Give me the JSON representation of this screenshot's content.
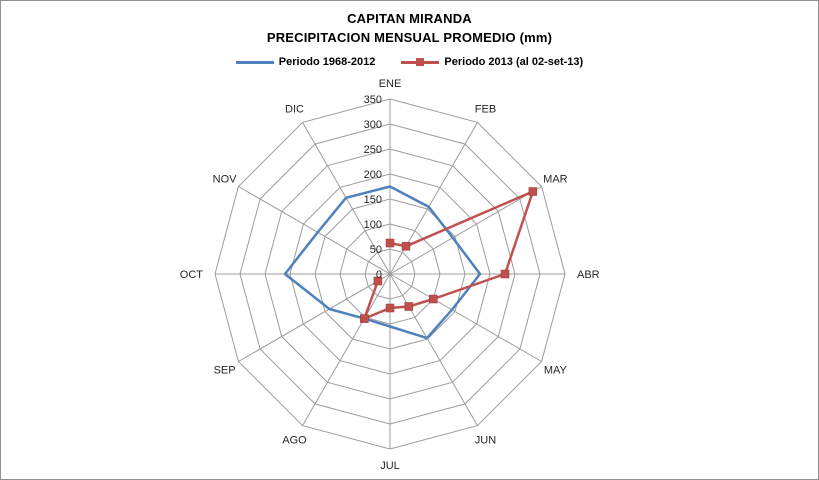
{
  "title": {
    "line1": "CAPITAN MIRANDA",
    "line2": "PRECIPITACION MENSUAL PROMEDIO (mm)"
  },
  "legend": [
    {
      "label": "Periodo 1968-2012",
      "color": "#4F81BD",
      "marker": "line"
    },
    {
      "label": "Periodo 2013 (al 02-set-13)",
      "color": "#C0504D",
      "marker": "line-square"
    }
  ],
  "chart_data": {
    "type": "radar",
    "title": "CAPITAN MIRANDA — PRECIPITACION MENSUAL PROMEDIO (mm)",
    "categories": [
      "ENE",
      "FEB",
      "MAR",
      "ABR",
      "MAY",
      "JUN",
      "JUL",
      "AGO",
      "SEP",
      "OCT",
      "NOV",
      "DIC"
    ],
    "axis": {
      "min": 0,
      "max": 350,
      "step": 50
    },
    "ticks": [
      0,
      50,
      100,
      150,
      200,
      250,
      300,
      350
    ],
    "grid": {
      "rings": 7,
      "color": "#9C9C9C"
    },
    "legend_position": "top",
    "series": [
      {
        "name": "Periodo 1968-2012",
        "color": "#4F81BD",
        "marker": "none",
        "closed": true,
        "values": [
          175,
          155,
          145,
          180,
          143,
          148,
          105,
          103,
          140,
          210,
          167,
          176
        ]
      },
      {
        "name": "Periodo 2013 (al 02-set-13)",
        "color": "#C0504D",
        "marker": "square",
        "closed": false,
        "values": [
          62,
          64,
          330,
          230,
          100,
          75,
          68,
          103,
          28,
          null,
          null,
          null
        ]
      }
    ]
  }
}
